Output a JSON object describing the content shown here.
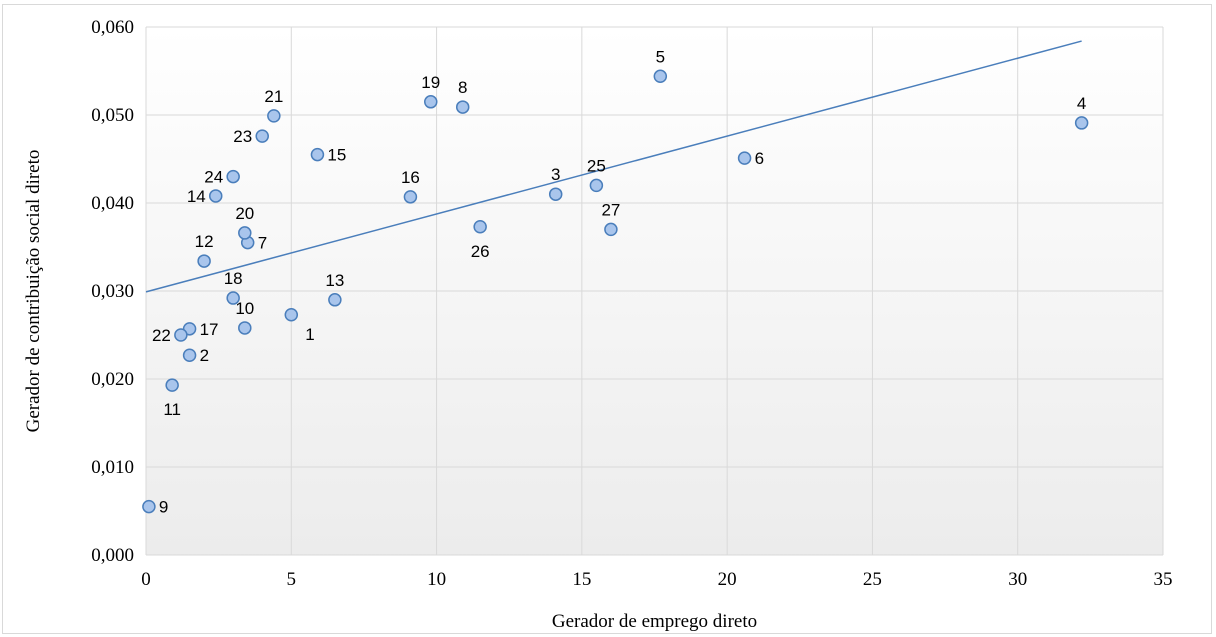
{
  "chart_data": {
    "type": "scatter",
    "title": "",
    "xlabel": "Gerador de emprego direto",
    "ylabel": "Gerador de contribuição social direto",
    "xlim": [
      0,
      35
    ],
    "ylim": [
      0,
      0.06
    ],
    "x_ticks": [
      0,
      5,
      10,
      15,
      20,
      25,
      30,
      35
    ],
    "x_tick_labels": [
      "0",
      "5",
      "10",
      "15",
      "20",
      "25",
      "30",
      "35"
    ],
    "y_ticks": [
      0,
      0.01,
      0.02,
      0.03,
      0.04,
      0.05,
      0.06
    ],
    "y_tick_labels": [
      "0,000",
      "0,010",
      "0,020",
      "0,030",
      "0,040",
      "0,050",
      "0,060"
    ],
    "grid": true,
    "legend": false,
    "colors": {
      "marker_fill": "#a9c5ec",
      "marker_stroke": "#4a7ebb",
      "trendline": "#4a7ebb",
      "grid": "#d9d9d9",
      "plot_gradient_top": "#ffffff",
      "plot_gradient_bottom": "#ececec"
    },
    "points": [
      {
        "label": "1",
        "x": 5.0,
        "y": 0.0273,
        "label_pos": "below-right"
      },
      {
        "label": "2",
        "x": 1.5,
        "y": 0.0227,
        "label_pos": "right"
      },
      {
        "label": "3",
        "x": 14.1,
        "y": 0.041,
        "label_pos": "above"
      },
      {
        "label": "4",
        "x": 32.2,
        "y": 0.0491,
        "label_pos": "above"
      },
      {
        "label": "5",
        "x": 17.7,
        "y": 0.0544,
        "label_pos": "above"
      },
      {
        "label": "6",
        "x": 20.6,
        "y": 0.0451,
        "label_pos": "right"
      },
      {
        "label": "7",
        "x": 3.5,
        "y": 0.0355,
        "label_pos": "right"
      },
      {
        "label": "8",
        "x": 10.9,
        "y": 0.0509,
        "label_pos": "above"
      },
      {
        "label": "9",
        "x": 0.1,
        "y": 0.0055,
        "label_pos": "right"
      },
      {
        "label": "10",
        "x": 3.4,
        "y": 0.0258,
        "label_pos": "above"
      },
      {
        "label": "11",
        "x": 0.9,
        "y": 0.0193,
        "label_pos": "below"
      },
      {
        "label": "12",
        "x": 2.0,
        "y": 0.0334,
        "label_pos": "above"
      },
      {
        "label": "13",
        "x": 6.5,
        "y": 0.029,
        "label_pos": "above"
      },
      {
        "label": "14",
        "x": 2.4,
        "y": 0.0408,
        "label_pos": "left"
      },
      {
        "label": "15",
        "x": 5.9,
        "y": 0.0455,
        "label_pos": "right"
      },
      {
        "label": "16",
        "x": 9.1,
        "y": 0.0407,
        "label_pos": "above"
      },
      {
        "label": "17",
        "x": 1.5,
        "y": 0.0257,
        "label_pos": "right"
      },
      {
        "label": "18",
        "x": 3.0,
        "y": 0.0292,
        "label_pos": "above"
      },
      {
        "label": "19",
        "x": 9.8,
        "y": 0.0515,
        "label_pos": "above"
      },
      {
        "label": "20",
        "x": 3.4,
        "y": 0.0366,
        "label_pos": "above"
      },
      {
        "label": "21",
        "x": 4.4,
        "y": 0.0499,
        "label_pos": "above"
      },
      {
        "label": "22",
        "x": 1.2,
        "y": 0.025,
        "label_pos": "left"
      },
      {
        "label": "23",
        "x": 4.0,
        "y": 0.0476,
        "label_pos": "left"
      },
      {
        "label": "24",
        "x": 3.0,
        "y": 0.043,
        "label_pos": "left"
      },
      {
        "label": "25",
        "x": 15.5,
        "y": 0.042,
        "label_pos": "above"
      },
      {
        "label": "26",
        "x": 11.5,
        "y": 0.0373,
        "label_pos": "below"
      },
      {
        "label": "27",
        "x": 16.0,
        "y": 0.037,
        "label_pos": "above"
      }
    ],
    "trendline": {
      "x": [
        0,
        32.2
      ],
      "y": [
        0.0299,
        0.0584
      ]
    }
  }
}
